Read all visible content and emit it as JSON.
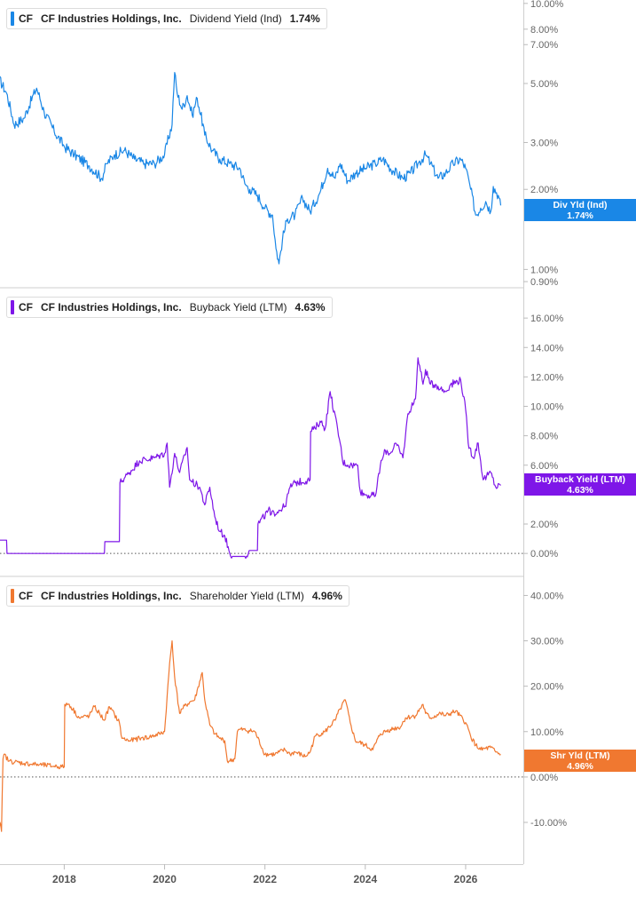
{
  "chart_data": [
    {
      "type": "line",
      "ticker": "CF",
      "company": "CF Industries Holdings, Inc.",
      "metric": "Dividend Yield (Ind)",
      "last_value": "1.74%",
      "tag_label": "Div Yld (Ind)",
      "color": "#1a87e6",
      "scale": "log",
      "ylim": [
        0.86,
        10.3
      ],
      "y_ticks": [
        "10.00%",
        "8.00%",
        "7.00%",
        "5.00%",
        "3.00%",
        "2.00%",
        "1.00%",
        "0.90%"
      ],
      "y_tick_values": [
        10,
        8,
        7,
        5,
        3,
        2,
        1,
        0.9
      ],
      "series": [
        {
          "x": [
            2016.7,
            2016.85,
            2017.0,
            2017.2,
            2017.45,
            2017.6,
            2017.8,
            2018.0,
            2018.2,
            2018.5,
            2018.75,
            2018.85,
            2019.0,
            2019.2,
            2019.4,
            2019.6,
            2019.8,
            2020.0,
            2020.15,
            2020.2,
            2020.25,
            2020.35,
            2020.45,
            2020.55,
            2020.65,
            2020.8,
            2020.95,
            2021.1,
            2021.3,
            2021.5,
            2021.6,
            2021.7,
            2021.85,
            2022.0,
            2022.15,
            2022.22,
            2022.28,
            2022.35,
            2022.45,
            2022.6,
            2022.75,
            2022.9,
            2023.1,
            2023.25,
            2023.4,
            2023.5,
            2023.65,
            2023.8,
            2024.0,
            2024.2,
            2024.35,
            2024.55,
            2024.75,
            2024.9,
            2025.05,
            2025.2,
            2025.3,
            2025.45,
            2025.6,
            2025.75,
            2025.9,
            2026.0,
            2026.1,
            2026.2,
            2026.3,
            2026.4,
            2026.5,
            2026.55,
            2026.65,
            2026.7
          ],
          "values": [
            5.2,
            4.6,
            3.5,
            3.7,
            4.8,
            3.9,
            3.3,
            2.9,
            2.7,
            2.45,
            2.2,
            2.5,
            2.7,
            2.8,
            2.6,
            2.5,
            2.5,
            2.7,
            3.5,
            5.5,
            4.6,
            4.0,
            4.5,
            3.8,
            4.4,
            3.2,
            2.8,
            2.6,
            2.5,
            2.4,
            2.1,
            2.0,
            1.9,
            1.7,
            1.6,
            1.2,
            1.05,
            1.3,
            1.55,
            1.6,
            1.85,
            1.65,
            1.95,
            2.4,
            2.2,
            2.5,
            2.15,
            2.3,
            2.4,
            2.5,
            2.6,
            2.35,
            2.2,
            2.3,
            2.5,
            2.7,
            2.5,
            2.2,
            2.3,
            2.5,
            2.6,
            2.4,
            2.0,
            1.6,
            1.7,
            1.8,
            1.65,
            2.05,
            1.9,
            1.74
          ]
        }
      ]
    },
    {
      "type": "line",
      "ticker": "CF",
      "company": "CF Industries Holdings, Inc.",
      "metric": "Buyback Yield (LTM)",
      "last_value": "4.63%",
      "tag_label": "Buyback Yield (LTM)",
      "color": "#7e16e8",
      "scale": "linear",
      "ylim": [
        -1.5,
        18
      ],
      "y_ticks": [
        "16.00%",
        "14.00%",
        "12.00%",
        "10.00%",
        "8.00%",
        "6.00%",
        "2.00%",
        "0.00%"
      ],
      "y_tick_values": [
        16,
        14,
        12,
        10,
        8,
        6,
        2,
        0
      ],
      "zero_line": true,
      "series": [
        {
          "x": [
            2016.7,
            2016.85,
            2016.86,
            2018.8,
            2018.81,
            2019.1,
            2019.11,
            2019.3,
            2019.5,
            2019.8,
            2020.0,
            2020.05,
            2020.1,
            2020.2,
            2020.3,
            2020.45,
            2020.5,
            2020.7,
            2020.8,
            2020.9,
            2021.0,
            2021.1,
            2021.2,
            2021.3,
            2021.35,
            2021.6,
            2021.7,
            2021.85,
            2021.86,
            2022.1,
            2022.11,
            2022.4,
            2022.5,
            2022.6,
            2022.9,
            2022.91,
            2023.0,
            2023.1,
            2023.2,
            2023.3,
            2023.5,
            2023.55,
            2023.7,
            2023.85,
            2023.9,
            2024.0,
            2024.2,
            2024.3,
            2024.4,
            2024.5,
            2024.6,
            2024.75,
            2024.85,
            2025.0,
            2025.05,
            2025.15,
            2025.2,
            2025.3,
            2025.4,
            2025.5,
            2025.6,
            2025.7,
            2025.9,
            2026.0,
            2026.05,
            2026.15,
            2026.25,
            2026.35,
            2026.5,
            2026.6,
            2026.7
          ],
          "values": [
            0.9,
            0.9,
            0.0,
            0.0,
            0.8,
            0.8,
            4.8,
            5.5,
            6.3,
            6.5,
            6.8,
            7.5,
            4.5,
            6.8,
            5.5,
            7.2,
            5.0,
            4.5,
            3.3,
            4.5,
            2.5,
            1.5,
            1.2,
            0.0,
            -0.2,
            -0.2,
            0.2,
            0.2,
            2.0,
            3.0,
            2.6,
            3.2,
            4.5,
            4.8,
            5.0,
            8.3,
            8.5,
            9.0,
            8.5,
            11.0,
            7.5,
            6.2,
            6.0,
            6.0,
            4.2,
            4.0,
            3.9,
            6.0,
            7.0,
            6.8,
            7.5,
            6.5,
            9.5,
            10.5,
            13.3,
            11.5,
            12.5,
            11.5,
            11.5,
            11.2,
            11.0,
            11.5,
            11.8,
            9.8,
            7.5,
            6.5,
            7.5,
            5.0,
            5.5,
            4.5,
            4.63
          ]
        }
      ]
    },
    {
      "type": "line",
      "ticker": "CF",
      "company": "CF Industries Holdings, Inc.",
      "metric": "Shareholder Yield (LTM)",
      "last_value": "4.96%",
      "tag_label": "Shr Yld (LTM)",
      "color": "#f07830",
      "scale": "linear",
      "ylim": [
        -19,
        44
      ],
      "y_ticks": [
        "40.00%",
        "30.00%",
        "20.00%",
        "10.00%",
        "0.00%",
        "-10.00%"
      ],
      "y_tick_values": [
        40,
        30,
        20,
        10,
        0,
        -10
      ],
      "zero_line": true,
      "series": [
        {
          "x": [
            2016.7,
            2016.72,
            2016.75,
            2016.78,
            2016.8,
            2016.9,
            2017.2,
            2017.5,
            2017.8,
            2018.0,
            2018.01,
            2018.1,
            2018.3,
            2018.5,
            2018.6,
            2018.8,
            2018.9,
            2019.1,
            2019.15,
            2019.3,
            2019.5,
            2019.7,
            2019.9,
            2020.0,
            2020.1,
            2020.15,
            2020.2,
            2020.3,
            2020.35,
            2020.5,
            2020.6,
            2020.75,
            2020.8,
            2020.9,
            2021.0,
            2021.1,
            2021.2,
            2021.25,
            2021.3,
            2021.4,
            2021.45,
            2021.5,
            2021.8,
            2022.0,
            2022.2,
            2022.4,
            2022.5,
            2022.6,
            2022.8,
            2022.9,
            2023.0,
            2023.2,
            2023.4,
            2023.5,
            2023.6,
            2023.7,
            2023.8,
            2024.0,
            2024.15,
            2024.3,
            2024.5,
            2024.7,
            2024.8,
            2025.0,
            2025.15,
            2025.2,
            2025.3,
            2025.5,
            2025.6,
            2025.8,
            2026.0,
            2026.1,
            2026.2,
            2026.3,
            2026.5,
            2026.6,
            2026.7
          ],
          "values": [
            -12.0,
            -10.0,
            -12.0,
            4.0,
            5.0,
            3.5,
            3.0,
            2.7,
            2.4,
            2.2,
            16.0,
            16.0,
            13.0,
            13.5,
            15.5,
            12.5,
            15.5,
            12.0,
            8.5,
            8.0,
            8.5,
            8.8,
            9.5,
            10.0,
            25.0,
            30.0,
            22.0,
            14.0,
            15.0,
            16.5,
            17.0,
            23.0,
            17.0,
            11.5,
            9.5,
            8.5,
            8.0,
            3.5,
            3.5,
            4.0,
            10.0,
            10.5,
            10.0,
            5.0,
            5.0,
            6.0,
            5.0,
            5.5,
            4.5,
            5.5,
            9.0,
            10.0,
            12.5,
            15.0,
            17.0,
            12.0,
            8.0,
            7.0,
            6.0,
            9.5,
            10.5,
            11.0,
            13.0,
            13.5,
            16.0,
            14.0,
            13.0,
            14.0,
            13.5,
            14.5,
            12.0,
            9.0,
            7.0,
            6.0,
            6.5,
            5.5,
            4.96
          ]
        }
      ]
    }
  ],
  "x_axis": {
    "tick_labels": [
      "2018",
      "2020",
      "2022",
      "2024",
      "2026"
    ],
    "tick_values": [
      2018,
      2020,
      2022,
      2024,
      2026
    ],
    "range": [
      2016.72,
      2027.15
    ]
  }
}
